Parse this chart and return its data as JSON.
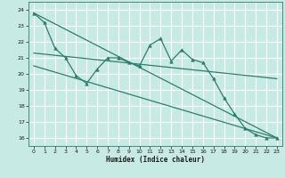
{
  "xlabel": "Humidex (Indice chaleur)",
  "background_color": "#c8eae4",
  "grid_color": "#ffffff",
  "line_color": "#2e7d6e",
  "xlim": [
    -0.5,
    23.5
  ],
  "ylim": [
    15.5,
    24.5
  ],
  "xticks": [
    0,
    1,
    2,
    3,
    4,
    5,
    6,
    7,
    8,
    9,
    10,
    11,
    12,
    13,
    14,
    15,
    16,
    17,
    18,
    19,
    20,
    21,
    22,
    23
  ],
  "yticks": [
    16,
    17,
    18,
    19,
    20,
    21,
    22,
    23,
    24
  ],
  "series1_x": [
    0,
    1,
    2,
    3,
    4,
    5,
    6,
    7,
    8,
    9,
    10,
    11,
    12,
    13,
    14,
    15,
    16,
    17,
    18,
    19,
    20,
    21,
    22,
    23
  ],
  "series1_y": [
    23.8,
    23.2,
    21.6,
    21.0,
    19.9,
    19.4,
    20.3,
    21.0,
    21.0,
    20.7,
    20.5,
    21.8,
    22.2,
    20.8,
    21.5,
    20.9,
    20.7,
    19.7,
    18.5,
    17.5,
    16.6,
    16.2,
    16.0,
    16.0
  ],
  "series2_x": [
    0,
    23
  ],
  "series2_y": [
    23.8,
    16.0
  ],
  "series3_x": [
    0,
    23
  ],
  "series3_y": [
    21.3,
    19.7
  ],
  "series4_x": [
    0,
    23
  ],
  "series4_y": [
    20.5,
    16.0
  ],
  "marker": "^",
  "markersize": 2.5,
  "linewidth": 0.9
}
